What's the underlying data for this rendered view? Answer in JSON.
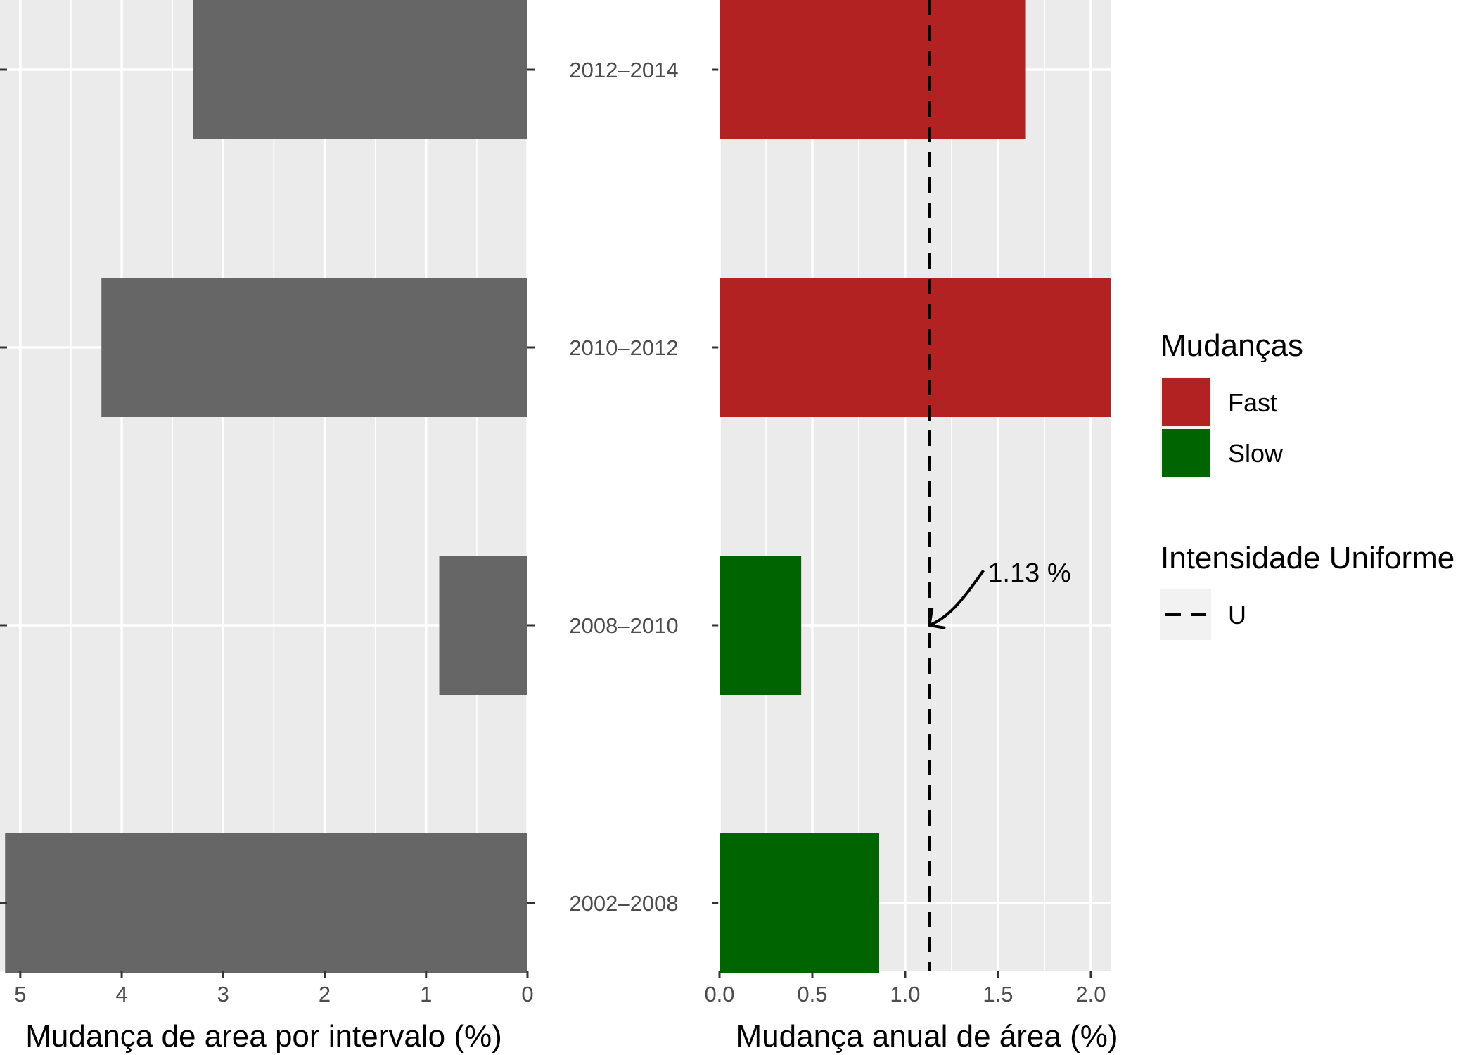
{
  "chart_data": [
    {
      "type": "bar",
      "orientation": "horizontal",
      "categories": [
        "2012–2014",
        "2010–2012",
        "2008–2010",
        "2002–2008"
      ],
      "values": [
        3.3,
        4.2,
        0.87,
        5.15
      ],
      "xlabel": "Mudança de area por intervalo (%)",
      "xlim": [
        0,
        5.2
      ],
      "x_reversed": true,
      "x_ticks": [
        5,
        4,
        3,
        2,
        1,
        0
      ],
      "x_tick_labels": [
        "5",
        "4",
        "3",
        "2",
        "1",
        "0"
      ],
      "bar_color": "#666666",
      "grid": true
    },
    {
      "type": "bar",
      "orientation": "horizontal",
      "categories": [
        "2012–2014",
        "2010–2012",
        "2008–2010",
        "2002–2008"
      ],
      "values": [
        1.65,
        2.11,
        0.44,
        0.86
      ],
      "groups": [
        "Fast",
        "Fast",
        "Slow",
        "Slow"
      ],
      "xlabel": "Mudança anual de área (%)",
      "xlim": [
        0,
        2.11
      ],
      "x_ticks": [
        0.0,
        0.5,
        1.0,
        1.5,
        2.0
      ],
      "x_tick_labels": [
        "0.0",
        "0.5",
        "1.0",
        "1.5",
        "2.0"
      ],
      "reference_line": {
        "value": 1.13,
        "style": "dashed",
        "label": "1.13 %"
      },
      "grid": true
    }
  ],
  "legend": {
    "placement": "right",
    "fill_title": "Mudanças",
    "fill_items": [
      {
        "label": "Fast",
        "color": "#b22222"
      },
      {
        "label": "Slow",
        "color": "#006400"
      }
    ],
    "line_title": "Intensidade Uniforme",
    "line_items": [
      {
        "label": "U",
        "style": "dashed"
      }
    ]
  },
  "colors": {
    "panel_bg": "#ebebeb",
    "grid": "#ffffff",
    "fast": "#b22222",
    "slow": "#006400",
    "interval_bar": "#666666"
  }
}
